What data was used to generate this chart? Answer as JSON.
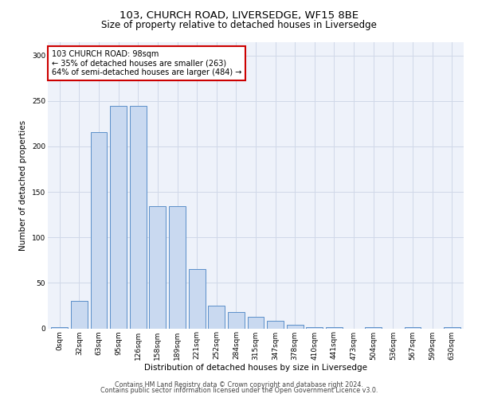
{
  "title1": "103, CHURCH ROAD, LIVERSEDGE, WF15 8BE",
  "title2": "Size of property relative to detached houses in Liversedge",
  "xlabel": "Distribution of detached houses by size in Liversedge",
  "ylabel": "Number of detached properties",
  "footnote1": "Contains HM Land Registry data © Crown copyright and database right 2024.",
  "footnote2": "Contains public sector information licensed under the Open Government Licence v3.0.",
  "annotation_title": "103 CHURCH ROAD: 98sqm",
  "annotation_line2": "← 35% of detached houses are smaller (263)",
  "annotation_line3": "64% of semi-detached houses are larger (484) →",
  "bar_labels": [
    "0sqm",
    "32sqm",
    "63sqm",
    "95sqm",
    "126sqm",
    "158sqm",
    "189sqm",
    "221sqm",
    "252sqm",
    "284sqm",
    "315sqm",
    "347sqm",
    "378sqm",
    "410sqm",
    "441sqm",
    "473sqm",
    "504sqm",
    "536sqm",
    "567sqm",
    "599sqm",
    "630sqm"
  ],
  "bar_values": [
    1,
    30,
    216,
    245,
    245,
    134,
    134,
    65,
    25,
    18,
    13,
    8,
    4,
    1,
    1,
    0,
    1,
    0,
    1,
    0,
    1
  ],
  "bar_color": "#c9d9f0",
  "bar_edge_color": "#5b8fc9",
  "annotation_box_color": "#ffffff",
  "annotation_box_edge": "#cc0000",
  "ylim": [
    0,
    315
  ],
  "yticks": [
    0,
    50,
    100,
    150,
    200,
    250,
    300
  ],
  "grid_color": "#d0d8e8",
  "bg_color": "#eef2fa",
  "fig_bg_color": "#ffffff",
  "title1_fontsize": 9.5,
  "title2_fontsize": 8.5,
  "ylabel_fontsize": 7.5,
  "xlabel_fontsize": 7.5,
  "tick_fontsize": 6.5,
  "annot_fontsize": 7,
  "footnote_fontsize": 5.8
}
